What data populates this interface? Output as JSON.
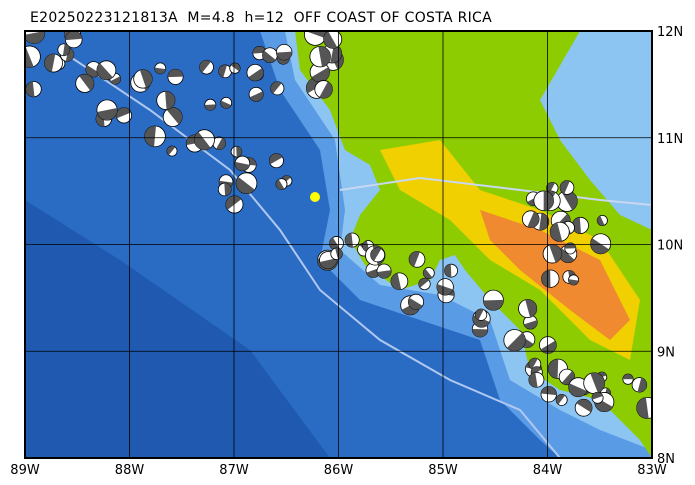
{
  "title": "E20250223121813A  M=4.8  h=12  OFF COAST OF COSTA RICA",
  "axes": {
    "x_ticks": [
      "89W",
      "88W",
      "87W",
      "86W",
      "85W",
      "84W",
      "83W"
    ],
    "y_ticks": [
      "12N",
      "11N",
      "10N",
      "9N",
      "8N"
    ]
  },
  "colors": {
    "deep_ocean": "#1f5fb4",
    "ocean": "#3a7fd6",
    "shelf": "#8cc4f2",
    "lowland": "#8ccc00",
    "highland": "#f0d000",
    "mountain": "#f08a30",
    "event_marker": "#ffff00",
    "grid": "#000000"
  },
  "event_marker": {
    "lon": -85.7,
    "lat": 10.45
  }
}
